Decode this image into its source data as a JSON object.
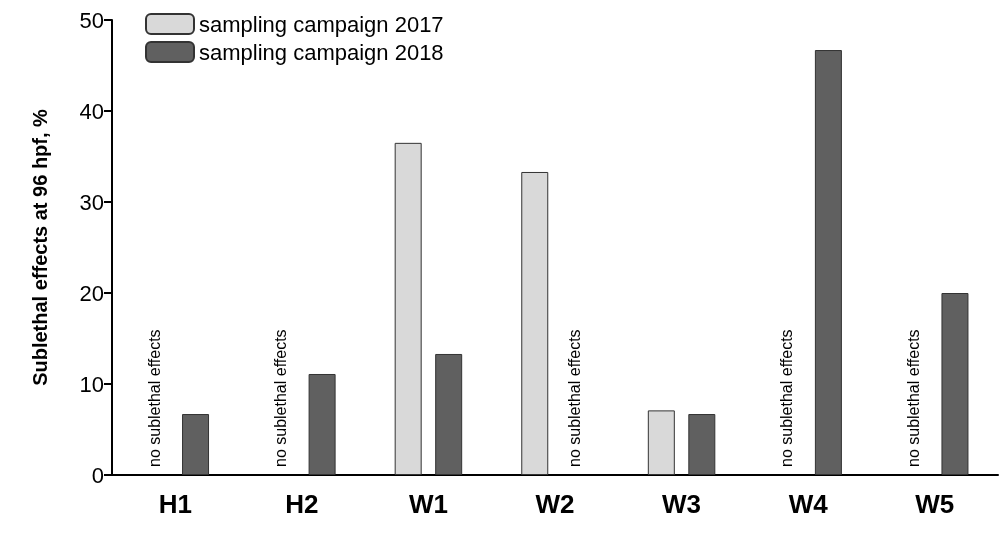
{
  "chart_data": {
    "type": "bar",
    "ylabel": "Sublethal effects at 96 hpf, %",
    "categories": [
      "H1",
      "H2",
      "W1",
      "W2",
      "W3",
      "W4",
      "W5"
    ],
    "series": [
      {
        "name": "sampling campaign 2017",
        "color": "#d9d9d9",
        "values": [
          null,
          null,
          36.5,
          33.3,
          7.1,
          null,
          null
        ]
      },
      {
        "name": "sampling campaign 2018",
        "color": "#606060",
        "values": [
          6.7,
          11.1,
          13.3,
          null,
          6.7,
          46.7,
          20
        ]
      }
    ],
    "ylim": [
      0,
      50
    ],
    "yticks": [
      0,
      10,
      20,
      30,
      40,
      50
    ],
    "grid": false,
    "legend": "top left",
    "annotations": [
      "no sublethal effects",
      "no sublethal effects",
      "no sublethal effects",
      "no sublethal effects",
      "no sublethal effects"
    ]
  }
}
